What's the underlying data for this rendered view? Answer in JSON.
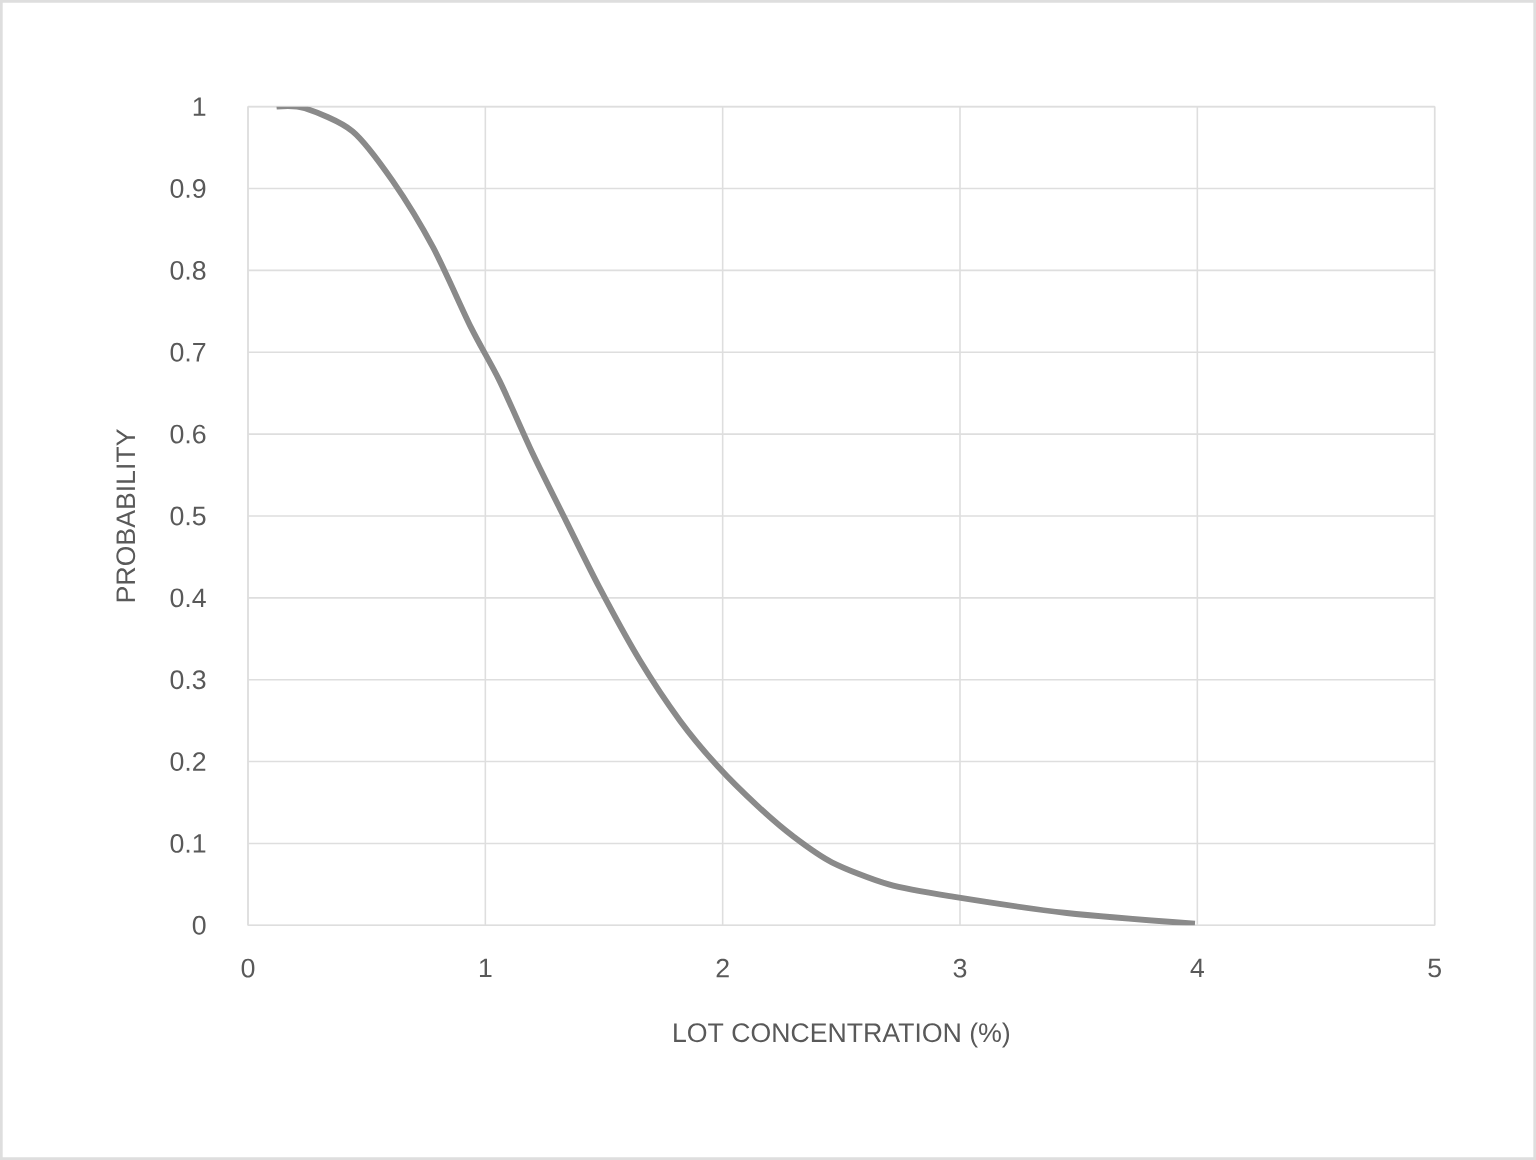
{
  "chart_data": {
    "type": "line",
    "xlabel": "LOT CONCENTRATION (%)",
    "ylabel": "PROBABILITY",
    "series": [
      {
        "color": "#8a8a8a",
        "x": [
          0.12,
          0.24,
          0.44,
          0.61,
          0.78,
          0.94,
          1.06,
          1.2,
          1.34,
          1.48,
          1.65,
          1.82,
          1.98,
          2.15,
          2.3,
          2.46,
          2.7,
          2.97,
          3.45,
          3.99
        ],
        "values": [
          1.0,
          0.998,
          0.97,
          0.909,
          0.828,
          0.73,
          0.665,
          0.576,
          0.494,
          0.413,
          0.324,
          0.25,
          0.194,
          0.145,
          0.108,
          0.077,
          0.05,
          0.035,
          0.015,
          0.002
        ]
      }
    ],
    "xlim": [
      0,
      5
    ],
    "xticks": [
      0,
      1,
      2,
      3,
      4,
      5
    ],
    "ylim": [
      0,
      1
    ],
    "yticks": [
      0,
      0.1,
      0.2,
      0.3,
      0.4,
      0.5,
      0.6,
      0.7,
      0.8,
      0.9,
      1
    ],
    "grid": true,
    "marker": "none",
    "line_style": "solid"
  }
}
